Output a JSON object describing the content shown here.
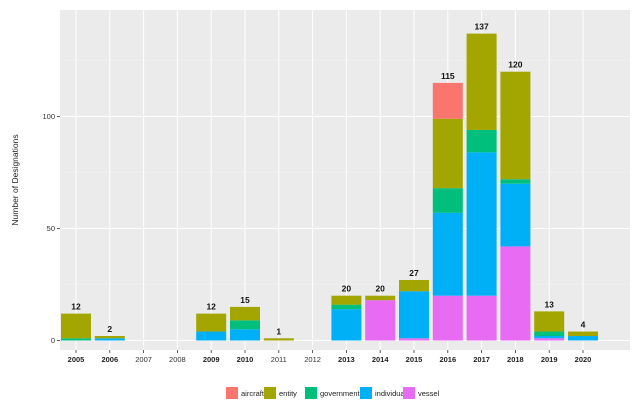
{
  "chart_data": {
    "type": "bar",
    "stacked": true,
    "title": "",
    "xlabel": "",
    "ylabel": "Number of Designations",
    "ylim": [
      0,
      145
    ],
    "yticks": [
      0,
      50,
      100
    ],
    "grid": true,
    "legend_position": "bottom",
    "categories": [
      "2005",
      "2006",
      "2007",
      "2008",
      "2009",
      "2010",
      "2011",
      "2012",
      "2013",
      "2014",
      "2015",
      "2016",
      "2017",
      "2018",
      "2019",
      "2020"
    ],
    "bold_categories": [
      "2005",
      "2006",
      "2009",
      "2010",
      "2013",
      "2014",
      "2015",
      "2016",
      "2017",
      "2018",
      "2019",
      "2020"
    ],
    "series": [
      {
        "name": "vessel",
        "color": "#E76BF3",
        "values": [
          0,
          0,
          0,
          0,
          0,
          0,
          0,
          0,
          0,
          18,
          1,
          20,
          20,
          42,
          1,
          0
        ]
      },
      {
        "name": "individual",
        "color": "#00B0F6",
        "values": [
          0,
          1,
          0,
          0,
          4,
          5,
          0,
          0,
          14,
          0,
          21,
          37,
          64,
          28,
          1,
          2
        ]
      },
      {
        "name": "government",
        "color": "#00BF7D",
        "values": [
          1,
          0,
          0,
          0,
          0,
          4,
          0,
          0,
          2,
          0,
          0,
          11,
          10,
          2,
          2,
          0
        ]
      },
      {
        "name": "entity",
        "color": "#A3A500",
        "values": [
          11,
          1,
          0,
          0,
          8,
          6,
          1,
          0,
          4,
          2,
          5,
          31,
          43,
          48,
          9,
          2
        ]
      },
      {
        "name": "aircraft",
        "color": "#F8766D",
        "values": [
          0,
          0,
          0,
          0,
          0,
          0,
          0,
          0,
          0,
          0,
          0,
          16,
          0,
          0,
          0,
          0
        ]
      }
    ],
    "totals": [
      12,
      2,
      null,
      null,
      12,
      15,
      1,
      null,
      20,
      20,
      27,
      115,
      137,
      120,
      13,
      4
    ],
    "legend_order": [
      "aircraft",
      "entity",
      "government",
      "individual",
      "vessel"
    ]
  }
}
